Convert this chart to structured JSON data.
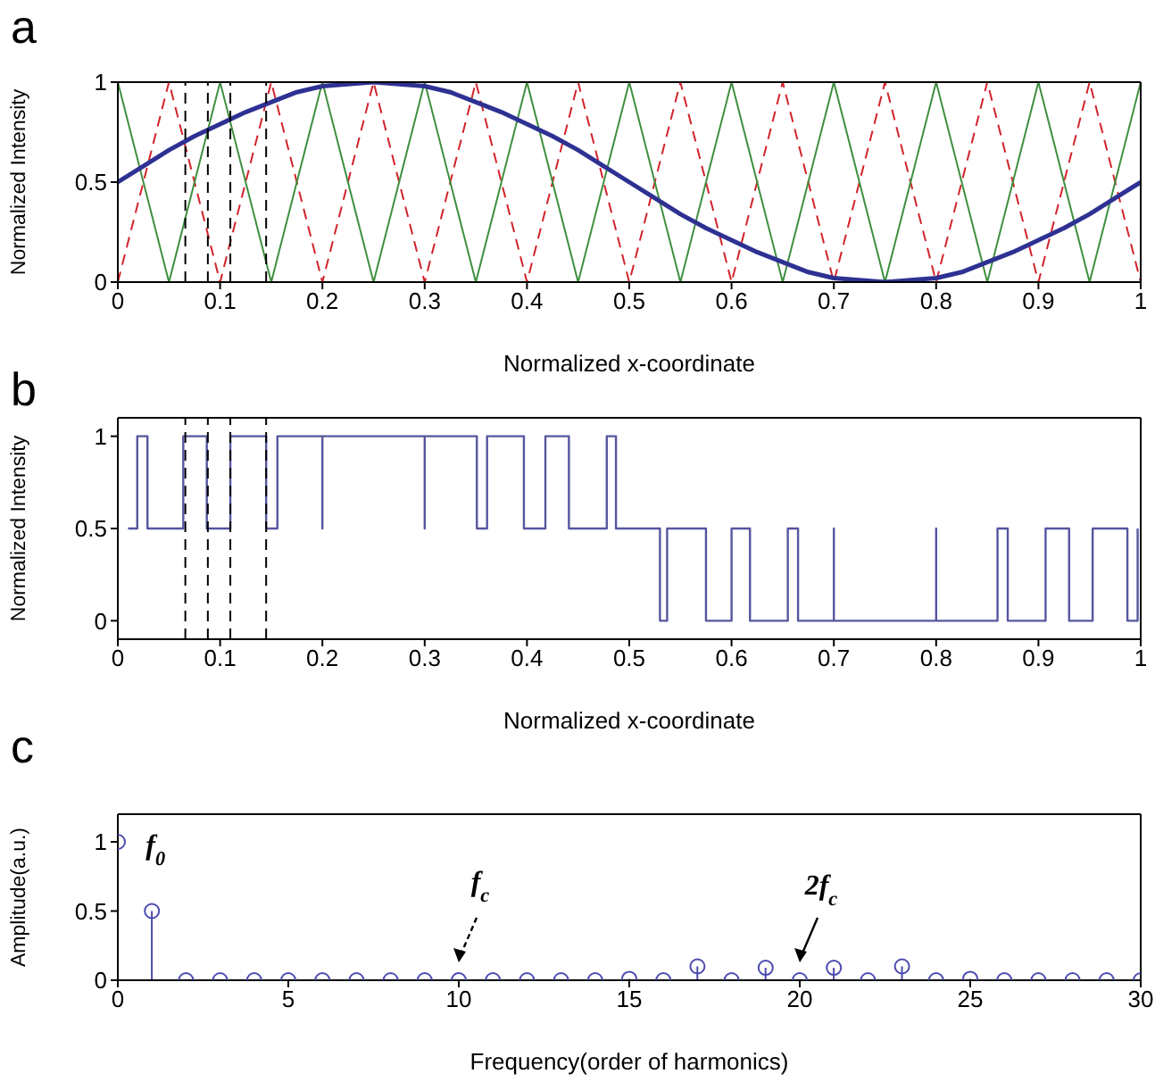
{
  "chart_data": [
    {
      "type": "line",
      "title": "a",
      "xlabel": "Normalized x-coordinate",
      "ylabel": "Normalized Intensity",
      "xlim": [
        0,
        1
      ],
      "ylim": [
        0,
        1
      ],
      "xticks": [
        0,
        0.1,
        0.2,
        0.3,
        0.4,
        0.5,
        0.6,
        0.7,
        0.8,
        0.9,
        1
      ],
      "yticks": [
        0,
        0.5,
        1
      ],
      "line_style": "solid",
      "ref_lines": [
        {
          "axis": "x",
          "value": 0.066,
          "color": "#000000",
          "line_style": "dashed"
        },
        {
          "axis": "x",
          "value": 0.088,
          "color": "#000000",
          "line_style": "dashed"
        },
        {
          "axis": "x",
          "value": 0.11,
          "color": "#000000",
          "line_style": "dashed"
        },
        {
          "axis": "x",
          "value": 0.145,
          "color": "#000000",
          "line_style": "dashed"
        }
      ],
      "series": [
        {
          "color": "#d2232a",
          "line_style": "dashed",
          "x": [
            0,
            0.05,
            0.1,
            0.15,
            0.2,
            0.25,
            0.3,
            0.35,
            0.4,
            0.45,
            0.5,
            0.55,
            0.6,
            0.65,
            0.7,
            0.75,
            0.8,
            0.85,
            0.9,
            0.95,
            1
          ],
          "values": [
            0,
            1,
            0,
            1,
            0,
            1,
            0,
            1,
            0,
            1,
            0,
            1,
            0,
            1,
            0,
            1,
            0,
            1,
            0,
            1,
            0
          ]
        },
        {
          "color": "#3f8f3f",
          "x": [
            0,
            0.05,
            0.1,
            0.15,
            0.2,
            0.25,
            0.3,
            0.35,
            0.4,
            0.45,
            0.5,
            0.55,
            0.6,
            0.65,
            0.7,
            0.75,
            0.8,
            0.85,
            0.9,
            0.95,
            1
          ],
          "values": [
            1,
            0,
            1,
            0,
            1,
            0,
            1,
            0,
            1,
            0,
            1,
            0,
            1,
            0,
            1,
            0,
            1,
            0,
            1,
            0,
            1
          ]
        },
        {
          "color": "#2e3192",
          "x": [
            0,
            0.025,
            0.05,
            0.075,
            0.1,
            0.125,
            0.15,
            0.175,
            0.2,
            0.225,
            0.25,
            0.275,
            0.3,
            0.325,
            0.35,
            0.375,
            0.4,
            0.425,
            0.45,
            0.475,
            0.5,
            0.525,
            0.55,
            0.575,
            0.6,
            0.625,
            0.65,
            0.675,
            0.7,
            0.725,
            0.75,
            0.775,
            0.8,
            0.825,
            0.85,
            0.875,
            0.9,
            0.925,
            0.95,
            0.975,
            1
          ],
          "values": [
            0.5,
            0.58,
            0.66,
            0.73,
            0.79,
            0.85,
            0.9,
            0.95,
            0.98,
            0.99,
            1,
            0.99,
            0.98,
            0.95,
            0.9,
            0.85,
            0.79,
            0.73,
            0.66,
            0.58,
            0.5,
            0.42,
            0.34,
            0.27,
            0.21,
            0.15,
            0.1,
            0.05,
            0.02,
            0.01,
            0,
            0.01,
            0.02,
            0.05,
            0.1,
            0.15,
            0.21,
            0.27,
            0.34,
            0.42,
            0.5
          ]
        }
      ]
    },
    {
      "type": "step",
      "title": "b",
      "xlabel": "Normalized x-coordinate",
      "ylabel": "Normalized Intensity",
      "xlim": [
        0,
        1
      ],
      "ylim": [
        -0.1,
        1.1
      ],
      "xticks": [
        0,
        0.1,
        0.2,
        0.3,
        0.4,
        0.5,
        0.6,
        0.7,
        0.8,
        0.9,
        1
      ],
      "yticks": [
        0,
        0.5,
        1
      ],
      "color": "#5656a0",
      "ref_lines": [
        {
          "axis": "x",
          "value": 0.066,
          "color": "#000000",
          "line_style": "dashed"
        },
        {
          "axis": "x",
          "value": 0.088,
          "color": "#000000",
          "line_style": "dashed"
        },
        {
          "axis": "x",
          "value": 0.11,
          "color": "#000000",
          "line_style": "dashed"
        },
        {
          "axis": "x",
          "value": 0.145,
          "color": "#000000",
          "line_style": "dashed"
        }
      ],
      "x": [
        0.01,
        0.019,
        0.029,
        0.064,
        0.087,
        0.11,
        0.145,
        0.156,
        0.2,
        0.2,
        0.3,
        0.3,
        0.351,
        0.361,
        0.397,
        0.418,
        0.441,
        0.478,
        0.487,
        0.53,
        0.537,
        0.575,
        0.6,
        0.618,
        0.655,
        0.665,
        0.7,
        0.7,
        0.8,
        0.8,
        0.86,
        0.87,
        0.907,
        0.93,
        0.953,
        0.987,
        0.997
      ],
      "values": [
        0.5,
        1,
        0.5,
        1,
        0.5,
        1,
        0.5,
        1,
        0.5,
        1,
        0.5,
        1,
        0.5,
        1,
        0.5,
        1,
        0.5,
        1,
        0.5,
        0,
        0.5,
        0,
        0.5,
        0,
        0.5,
        0,
        0.5,
        0,
        0.5,
        0,
        0.5,
        0,
        0.5,
        0,
        0.5,
        0,
        0.5
      ]
    },
    {
      "type": "lollipop",
      "title": "c",
      "xlabel": "Frequency(order of harmonics)",
      "ylabel": "Amplitude(a.u.)",
      "xlim": [
        0,
        30
      ],
      "ylim": [
        0,
        1.2
      ],
      "xticks": [
        0,
        5,
        10,
        15,
        20,
        25,
        30
      ],
      "yticks": [
        0,
        0.5,
        1
      ],
      "marker": "circle",
      "color": "#4b4bb0",
      "x": [
        0,
        1,
        2,
        3,
        4,
        5,
        6,
        7,
        8,
        9,
        10,
        11,
        12,
        13,
        14,
        15,
        16,
        17,
        18,
        19,
        20,
        21,
        22,
        23,
        24,
        25,
        26,
        27,
        28,
        29,
        30
      ],
      "values": [
        1,
        0.5,
        0,
        0,
        0,
        0,
        0,
        0,
        0,
        0,
        0,
        0,
        0,
        0,
        0,
        0.01,
        0,
        0.1,
        0,
        0.09,
        0,
        0.09,
        0,
        0.1,
        0,
        0.01,
        0,
        0,
        0,
        0,
        0
      ],
      "annotations": [
        {
          "text": "f$_{0}$",
          "x": 1,
          "y": 0.5
        },
        {
          "text": "f$_{c}$",
          "x": 10,
          "y": 0
        },
        {
          "text": "2f$_{c}$",
          "x": 20,
          "y": 0
        }
      ]
    }
  ]
}
